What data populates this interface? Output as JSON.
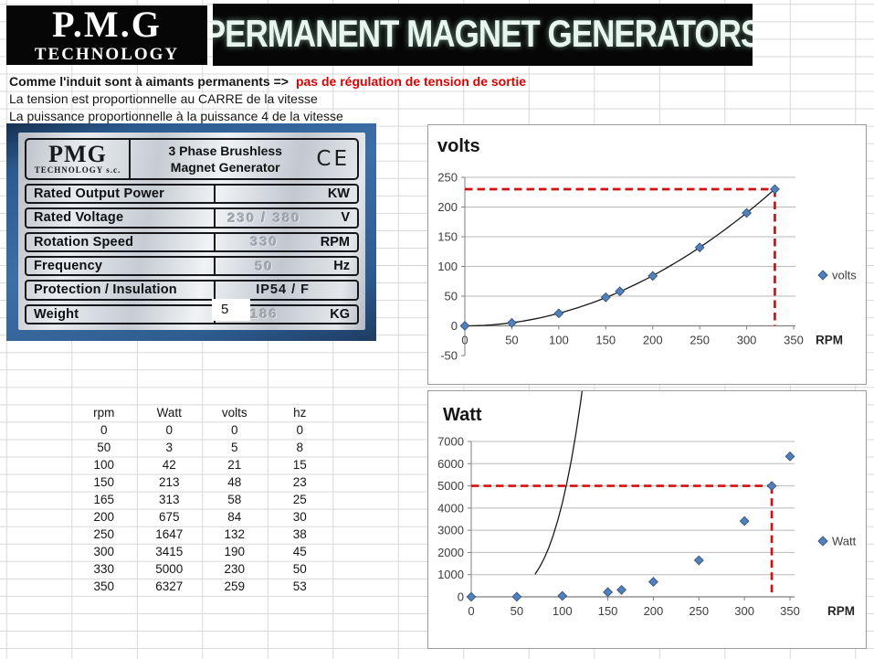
{
  "banner": {
    "logo_line1": "P.M.G",
    "logo_line2": "TECHNOLOGY",
    "title": "PERMANENT MAGNET GENERATORS"
  },
  "notes": {
    "line1_black": "Comme l'induit sont à aimants permanents =>",
    "line1_red": "pas de régulation de tension de sortie",
    "line2": "La tension est proportionnelle au CARRE de la vitesse",
    "line3": "La puissance proportionnelle à la puissance 4 de la vitesse"
  },
  "nameplate": {
    "logo_title": "PMG",
    "logo_sub": "TECHNOLOGY s.c.",
    "title_line1": "3 Phase Brushless",
    "title_line2": "Magnet Generator",
    "ce_mark": "CE",
    "power_value": "5",
    "rows": [
      {
        "label": "Rated Output Power",
        "value": "",
        "unit": "KW",
        "printed": false
      },
      {
        "label": "Rated Voltage",
        "value": "230 / 380",
        "unit": "V",
        "printed": false
      },
      {
        "label": "Rotation Speed",
        "value": "330",
        "unit": "RPM",
        "printed": false
      },
      {
        "label": "Frequency",
        "value": "50",
        "unit": "Hz",
        "printed": false
      },
      {
        "label": "Protection / Insulation",
        "value": "IP54  /  F",
        "unit": "",
        "printed": true
      },
      {
        "label": "Weight",
        "value": "186",
        "unit": "KG",
        "printed": false
      }
    ]
  },
  "table": {
    "headers": [
      "rpm",
      "Watt",
      "volts",
      "hz"
    ],
    "rows": [
      [
        0,
        0,
        0,
        0
      ],
      [
        50,
        3,
        5,
        8
      ],
      [
        100,
        42,
        21,
        15
      ],
      [
        150,
        213,
        48,
        23
      ],
      [
        165,
        313,
        58,
        25
      ],
      [
        200,
        675,
        84,
        30
      ],
      [
        250,
        1647,
        132,
        38
      ],
      [
        300,
        3415,
        190,
        45
      ],
      [
        330,
        5000,
        230,
        50
      ],
      [
        350,
        6327,
        259,
        53
      ]
    ]
  },
  "chart_data": [
    {
      "type": "scatter",
      "title": "volts",
      "xlabel": "RPM",
      "legend": "volts",
      "x": [
        0,
        50,
        100,
        150,
        165,
        200,
        250,
        300,
        330
      ],
      "y": [
        0,
        5,
        21,
        48,
        58,
        84,
        132,
        190,
        230
      ],
      "xlim": [
        0,
        350
      ],
      "xstep": 50,
      "ylim": [
        -50,
        250
      ],
      "ystep": 50,
      "grid": true,
      "legend_position": "right",
      "trend": {
        "type": "power",
        "k": 0.002113,
        "p": 2,
        "from": 0,
        "to": 330
      },
      "crosshair": {
        "x": 330,
        "y": 230
      }
    },
    {
      "type": "scatter",
      "title": "Watt",
      "xlabel": "RPM",
      "legend": "Watt",
      "x": [
        0,
        50,
        100,
        150,
        165,
        200,
        250,
        300,
        330,
        350
      ],
      "y": [
        0,
        3,
        42,
        213,
        313,
        675,
        1647,
        3415,
        5000,
        6327
      ],
      "xlim": [
        0,
        350
      ],
      "xstep": 50,
      "ylim": [
        0,
        7000
      ],
      "ystep": 1000,
      "grid": true,
      "legend_position": "right",
      "trend": {
        "type": "power",
        "k": 4.22e-05,
        "p": 4,
        "from": 70,
        "to": 350
      },
      "crosshair": {
        "x": 330,
        "y": 5000
      }
    }
  ],
  "colors": {
    "marker_blue": "#4f81bd",
    "marker_stroke": "#38537a",
    "dash_red": "#d31010",
    "note_red": "#e00000",
    "banner_text": "#e9f6ef"
  }
}
